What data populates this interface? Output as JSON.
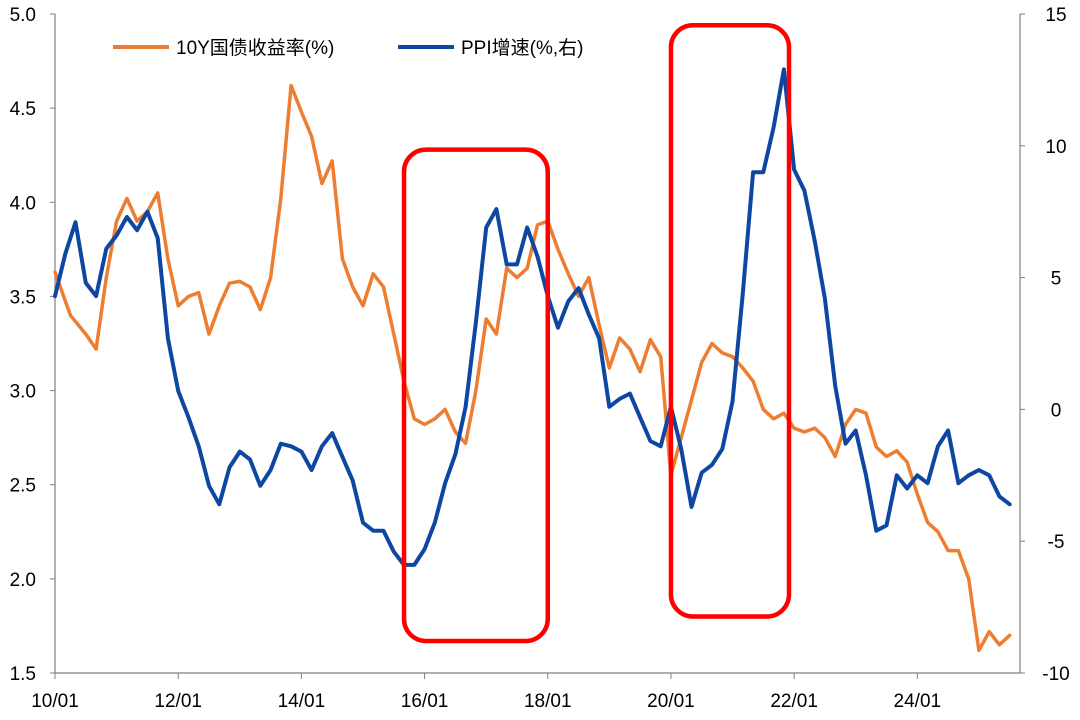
{
  "chart_data": {
    "type": "line",
    "x_tick_labels": [
      "10/01",
      "12/01",
      "14/01",
      "16/01",
      "18/01",
      "20/01",
      "22/01",
      "24/01"
    ],
    "left_axis": {
      "ylim": [
        1.5,
        5.0
      ],
      "ticks": [
        "1.5",
        "2.0",
        "2.5",
        "3.0",
        "3.5",
        "4.0",
        "4.5",
        "5.0"
      ]
    },
    "right_axis": {
      "ylim": [
        -10,
        15
      ],
      "ticks": [
        "-10",
        "-5",
        "0",
        "5",
        "10",
        "15"
      ]
    },
    "grid": false,
    "legend_position": "top",
    "series": [
      {
        "name": "10Y国债收益率(%)",
        "axis": "left",
        "color": "#ED7D31",
        "points": [
          [
            "2010-01",
            3.63
          ],
          [
            "2010-04",
            3.4
          ],
          [
            "2010-07",
            3.3
          ],
          [
            "2010-09",
            3.22
          ],
          [
            "2010-11",
            3.6
          ],
          [
            "2011-01",
            3.9
          ],
          [
            "2011-03",
            4.02
          ],
          [
            "2011-05",
            3.9
          ],
          [
            "2011-07",
            3.95
          ],
          [
            "2011-09",
            4.05
          ],
          [
            "2011-11",
            3.7
          ],
          [
            "2012-01",
            3.45
          ],
          [
            "2012-03",
            3.5
          ],
          [
            "2012-05",
            3.52
          ],
          [
            "2012-07",
            3.3
          ],
          [
            "2012-09",
            3.45
          ],
          [
            "2012-11",
            3.57
          ],
          [
            "2013-01",
            3.58
          ],
          [
            "2013-03",
            3.55
          ],
          [
            "2013-05",
            3.43
          ],
          [
            "2013-07",
            3.6
          ],
          [
            "2013-09",
            4.02
          ],
          [
            "2013-11",
            4.62
          ],
          [
            "2014-01",
            4.48
          ],
          [
            "2014-03",
            4.35
          ],
          [
            "2014-05",
            4.1
          ],
          [
            "2014-07",
            4.22
          ],
          [
            "2014-09",
            3.7
          ],
          [
            "2014-11",
            3.55
          ],
          [
            "2015-01",
            3.45
          ],
          [
            "2015-03",
            3.62
          ],
          [
            "2015-05",
            3.55
          ],
          [
            "2015-07",
            3.3
          ],
          [
            "2015-09",
            3.05
          ],
          [
            "2015-11",
            2.85
          ],
          [
            "2016-01",
            2.82
          ],
          [
            "2016-03",
            2.85
          ],
          [
            "2016-05",
            2.9
          ],
          [
            "2016-07",
            2.78
          ],
          [
            "2016-09",
            2.72
          ],
          [
            "2016-11",
            3.0
          ],
          [
            "2017-01",
            3.38
          ],
          [
            "2017-03",
            3.3
          ],
          [
            "2017-05",
            3.65
          ],
          [
            "2017-07",
            3.6
          ],
          [
            "2017-09",
            3.65
          ],
          [
            "2017-11",
            3.88
          ],
          [
            "2018-01",
            3.9
          ],
          [
            "2018-03",
            3.75
          ],
          [
            "2018-05",
            3.62
          ],
          [
            "2018-07",
            3.5
          ],
          [
            "2018-09",
            3.6
          ],
          [
            "2018-11",
            3.35
          ],
          [
            "2019-01",
            3.12
          ],
          [
            "2019-03",
            3.28
          ],
          [
            "2019-05",
            3.22
          ],
          [
            "2019-07",
            3.1
          ],
          [
            "2019-09",
            3.27
          ],
          [
            "2019-11",
            3.18
          ],
          [
            "2020-01",
            2.55
          ],
          [
            "2020-03",
            2.75
          ],
          [
            "2020-05",
            2.95
          ],
          [
            "2020-07",
            3.15
          ],
          [
            "2020-09",
            3.25
          ],
          [
            "2020-11",
            3.2
          ],
          [
            "2021-01",
            3.18
          ],
          [
            "2021-03",
            3.12
          ],
          [
            "2021-05",
            3.05
          ],
          [
            "2021-07",
            2.9
          ],
          [
            "2021-09",
            2.85
          ],
          [
            "2021-11",
            2.88
          ],
          [
            "2022-01",
            2.8
          ],
          [
            "2022-03",
            2.78
          ],
          [
            "2022-05",
            2.8
          ],
          [
            "2022-07",
            2.75
          ],
          [
            "2022-09",
            2.65
          ],
          [
            "2022-11",
            2.82
          ],
          [
            "2023-01",
            2.9
          ],
          [
            "2023-03",
            2.88
          ],
          [
            "2023-05",
            2.7
          ],
          [
            "2023-07",
            2.65
          ],
          [
            "2023-09",
            2.68
          ],
          [
            "2023-11",
            2.62
          ],
          [
            "2024-01",
            2.45
          ],
          [
            "2024-03",
            2.3
          ],
          [
            "2024-05",
            2.25
          ],
          [
            "2024-07",
            2.15
          ],
          [
            "2024-09",
            2.15
          ],
          [
            "2024-11",
            2.0
          ],
          [
            "2025-01",
            1.62
          ],
          [
            "2025-03",
            1.72
          ],
          [
            "2025-05",
            1.65
          ],
          [
            "2025-07",
            1.7
          ]
        ]
      },
      {
        "name": "PPI增速(%,右)",
        "axis": "right",
        "color": "#0D47A1",
        "points": [
          [
            "2010-01",
            4.3
          ],
          [
            "2010-03",
            5.9
          ],
          [
            "2010-05",
            7.1
          ],
          [
            "2010-07",
            4.8
          ],
          [
            "2010-09",
            4.3
          ],
          [
            "2010-11",
            6.1
          ],
          [
            "2011-01",
            6.6
          ],
          [
            "2011-03",
            7.3
          ],
          [
            "2011-05",
            6.8
          ],
          [
            "2011-07",
            7.5
          ],
          [
            "2011-09",
            6.5
          ],
          [
            "2011-11",
            2.7
          ],
          [
            "2012-01",
            0.7
          ],
          [
            "2012-03",
            -0.3
          ],
          [
            "2012-05",
            -1.4
          ],
          [
            "2012-07",
            -2.9
          ],
          [
            "2012-09",
            -3.6
          ],
          [
            "2012-11",
            -2.2
          ],
          [
            "2013-01",
            -1.6
          ],
          [
            "2013-03",
            -1.9
          ],
          [
            "2013-05",
            -2.9
          ],
          [
            "2013-07",
            -2.3
          ],
          [
            "2013-09",
            -1.3
          ],
          [
            "2013-11",
            -1.4
          ],
          [
            "2014-01",
            -1.6
          ],
          [
            "2014-03",
            -2.3
          ],
          [
            "2014-05",
            -1.4
          ],
          [
            "2014-07",
            -0.9
          ],
          [
            "2014-09",
            -1.8
          ],
          [
            "2014-11",
            -2.7
          ],
          [
            "2015-01",
            -4.3
          ],
          [
            "2015-03",
            -4.6
          ],
          [
            "2015-05",
            -4.6
          ],
          [
            "2015-07",
            -5.4
          ],
          [
            "2015-09",
            -5.9
          ],
          [
            "2015-11",
            -5.9
          ],
          [
            "2016-01",
            -5.3
          ],
          [
            "2016-03",
            -4.3
          ],
          [
            "2016-05",
            -2.8
          ],
          [
            "2016-07",
            -1.7
          ],
          [
            "2016-09",
            0.1
          ],
          [
            "2016-11",
            3.3
          ],
          [
            "2017-01",
            6.9
          ],
          [
            "2017-03",
            7.6
          ],
          [
            "2017-05",
            5.5
          ],
          [
            "2017-07",
            5.5
          ],
          [
            "2017-09",
            6.9
          ],
          [
            "2017-11",
            5.8
          ],
          [
            "2018-01",
            4.3
          ],
          [
            "2018-03",
            3.1
          ],
          [
            "2018-05",
            4.1
          ],
          [
            "2018-07",
            4.6
          ],
          [
            "2018-09",
            3.6
          ],
          [
            "2018-11",
            2.7
          ],
          [
            "2019-01",
            0.1
          ],
          [
            "2019-03",
            0.4
          ],
          [
            "2019-05",
            0.6
          ],
          [
            "2019-07",
            -0.3
          ],
          [
            "2019-09",
            -1.2
          ],
          [
            "2019-11",
            -1.4
          ],
          [
            "2020-01",
            0.1
          ],
          [
            "2020-03",
            -1.5
          ],
          [
            "2020-05",
            -3.7
          ],
          [
            "2020-07",
            -2.4
          ],
          [
            "2020-09",
            -2.1
          ],
          [
            "2020-11",
            -1.5
          ],
          [
            "2021-01",
            0.3
          ],
          [
            "2021-03",
            4.4
          ],
          [
            "2021-05",
            9.0
          ],
          [
            "2021-07",
            9.0
          ],
          [
            "2021-09",
            10.7
          ],
          [
            "2021-11",
            12.9
          ],
          [
            "2022-01",
            9.1
          ],
          [
            "2022-03",
            8.3
          ],
          [
            "2022-05",
            6.4
          ],
          [
            "2022-07",
            4.2
          ],
          [
            "2022-09",
            0.9
          ],
          [
            "2022-11",
            -1.3
          ],
          [
            "2023-01",
            -0.8
          ],
          [
            "2023-03",
            -2.5
          ],
          [
            "2023-05",
            -4.6
          ],
          [
            "2023-07",
            -4.4
          ],
          [
            "2023-09",
            -2.5
          ],
          [
            "2023-11",
            -3.0
          ],
          [
            "2024-01",
            -2.5
          ],
          [
            "2024-03",
            -2.8
          ],
          [
            "2024-05",
            -1.4
          ],
          [
            "2024-07",
            -0.8
          ],
          [
            "2024-09",
            -2.8
          ],
          [
            "2024-11",
            -2.5
          ],
          [
            "2025-01",
            -2.3
          ],
          [
            "2025-03",
            -2.5
          ],
          [
            "2025-05",
            -3.3
          ],
          [
            "2025-07",
            -3.6
          ]
        ]
      }
    ],
    "annotations": [
      {
        "shape": "rounded-rect",
        "color": "#FF0000",
        "x_from": "2015-09",
        "x_to": "2018-01",
        "y_top": 4.28,
        "y_bottom": 1.67
      },
      {
        "shape": "rounded-rect",
        "color": "#FF0000",
        "x_from": "2020-01",
        "x_to": "2021-12",
        "y_top": 4.94,
        "y_bottom": 1.8
      }
    ]
  }
}
